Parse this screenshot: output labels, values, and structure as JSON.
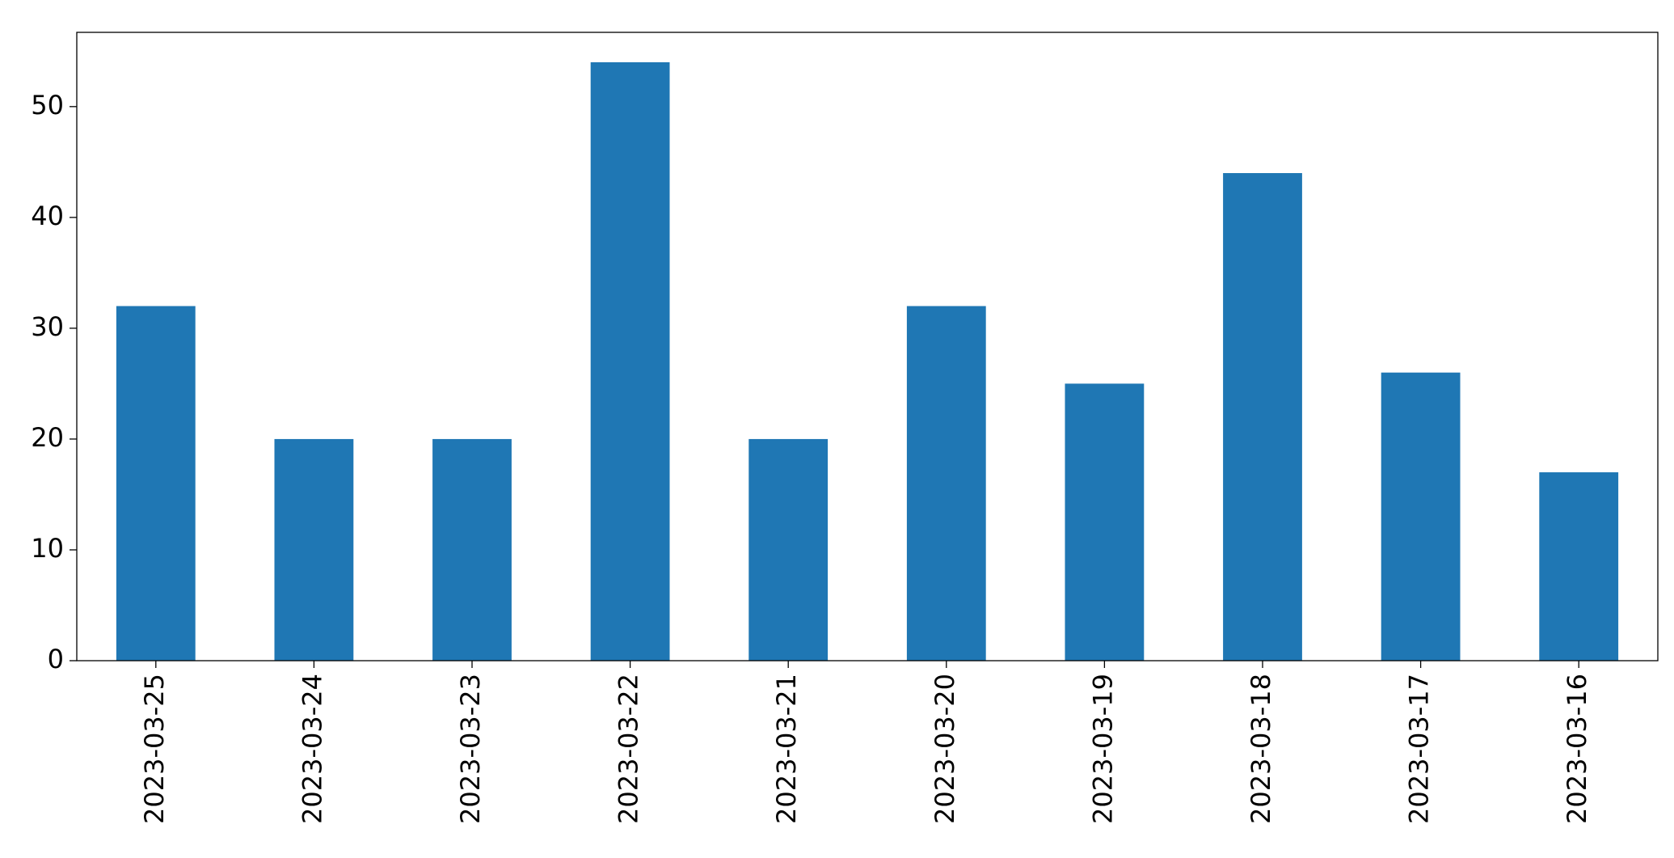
{
  "chart_data": {
    "type": "bar",
    "categories": [
      "2023-03-25",
      "2023-03-24",
      "2023-03-23",
      "2023-03-22",
      "2023-03-21",
      "2023-03-20",
      "2023-03-19",
      "2023-03-18",
      "2023-03-17",
      "2023-03-16"
    ],
    "values": [
      32,
      20,
      20,
      54,
      20,
      32,
      25,
      44,
      26,
      17
    ],
    "color": "#1f77b4",
    "ylim": [
      0,
      56.7
    ],
    "yticks": [
      0,
      10,
      20,
      30,
      40,
      50
    ],
    "grid": false
  }
}
